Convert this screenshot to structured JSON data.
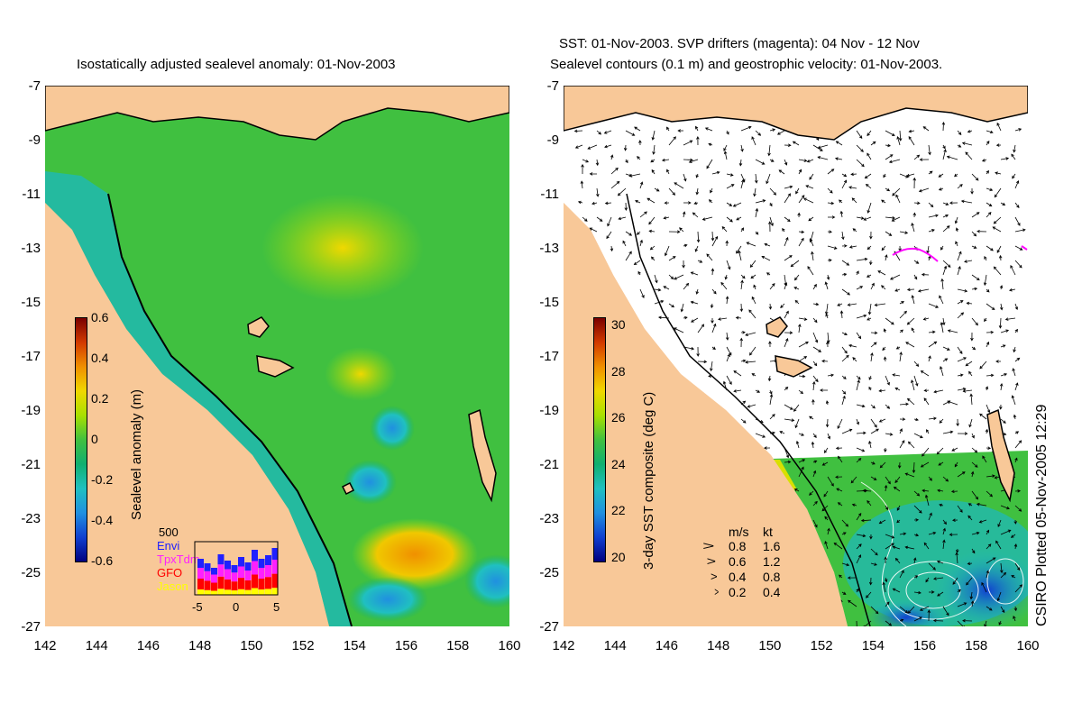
{
  "left_panel": {
    "title": "Isostatically adjusted sealevel anomaly: 01-Nov-2003",
    "colorbar": {
      "label": "Sealevel anomaly (m)",
      "ticks": [
        "0.6",
        "0.4",
        "0.2",
        "0",
        "-0.2",
        "-0.4",
        "-0.6"
      ],
      "colors": [
        "#7a0000",
        "#d23a00",
        "#f09000",
        "#f0d800",
        "#a8e000",
        "#40c040",
        "#10b070",
        "#20c0c0",
        "#2090e0",
        "#1040d0",
        "#000080"
      ]
    },
    "satellites": {
      "scale_label": "500",
      "missions": [
        {
          "name": "Envi",
          "color": "#2020ff"
        },
        {
          "name": "TpxTdm",
          "color": "#ff20ff"
        },
        {
          "name": "GFO",
          "color": "#ff0000"
        },
        {
          "name": "Jason",
          "color": "#ffff00"
        }
      ],
      "xticks": [
        "-5",
        "0",
        "5"
      ]
    }
  },
  "right_panel": {
    "title_line1": "SST: 01-Nov-2003. SVP drifters (magenta): 04 Nov - 12 Nov",
    "title_line2": "Sealevel contours (0.1 m) and geostrophic velocity: 01-Nov-2003.",
    "colorbar": {
      "label": "3-day SST composite (deg C)",
      "ticks": [
        "30",
        "28",
        "26",
        "24",
        "22",
        "20"
      ],
      "colors": [
        "#7a0000",
        "#d23a00",
        "#f09000",
        "#f0d800",
        "#a8e000",
        "#40c040",
        "#10b070",
        "#20c0c0",
        "#2090e0",
        "#1040d0",
        "#000080"
      ]
    },
    "velocity_key": {
      "header_ms": "m/s",
      "header_kt": "kt",
      "rows": [
        {
          "ms": "0.8",
          "kt": "1.6"
        },
        {
          "ms": "0.6",
          "kt": "1.2"
        },
        {
          "ms": "0.4",
          "kt": "0.8"
        },
        {
          "ms": "0.2",
          "kt": "0.4"
        }
      ]
    },
    "credit": "CSIRO Plotted 05-Nov-2005 12:29"
  },
  "axes": {
    "lat_ticks": [
      "-7",
      "-9",
      "-11",
      "-13",
      "-15",
      "-17",
      "-19",
      "-21",
      "-23",
      "-25",
      "-27"
    ],
    "lon_ticks": [
      "142",
      "144",
      "146",
      "148",
      "150",
      "152",
      "154",
      "156",
      "158",
      "160"
    ]
  },
  "colors": {
    "land": "#f8c898",
    "ocean_base": "#40c040"
  }
}
